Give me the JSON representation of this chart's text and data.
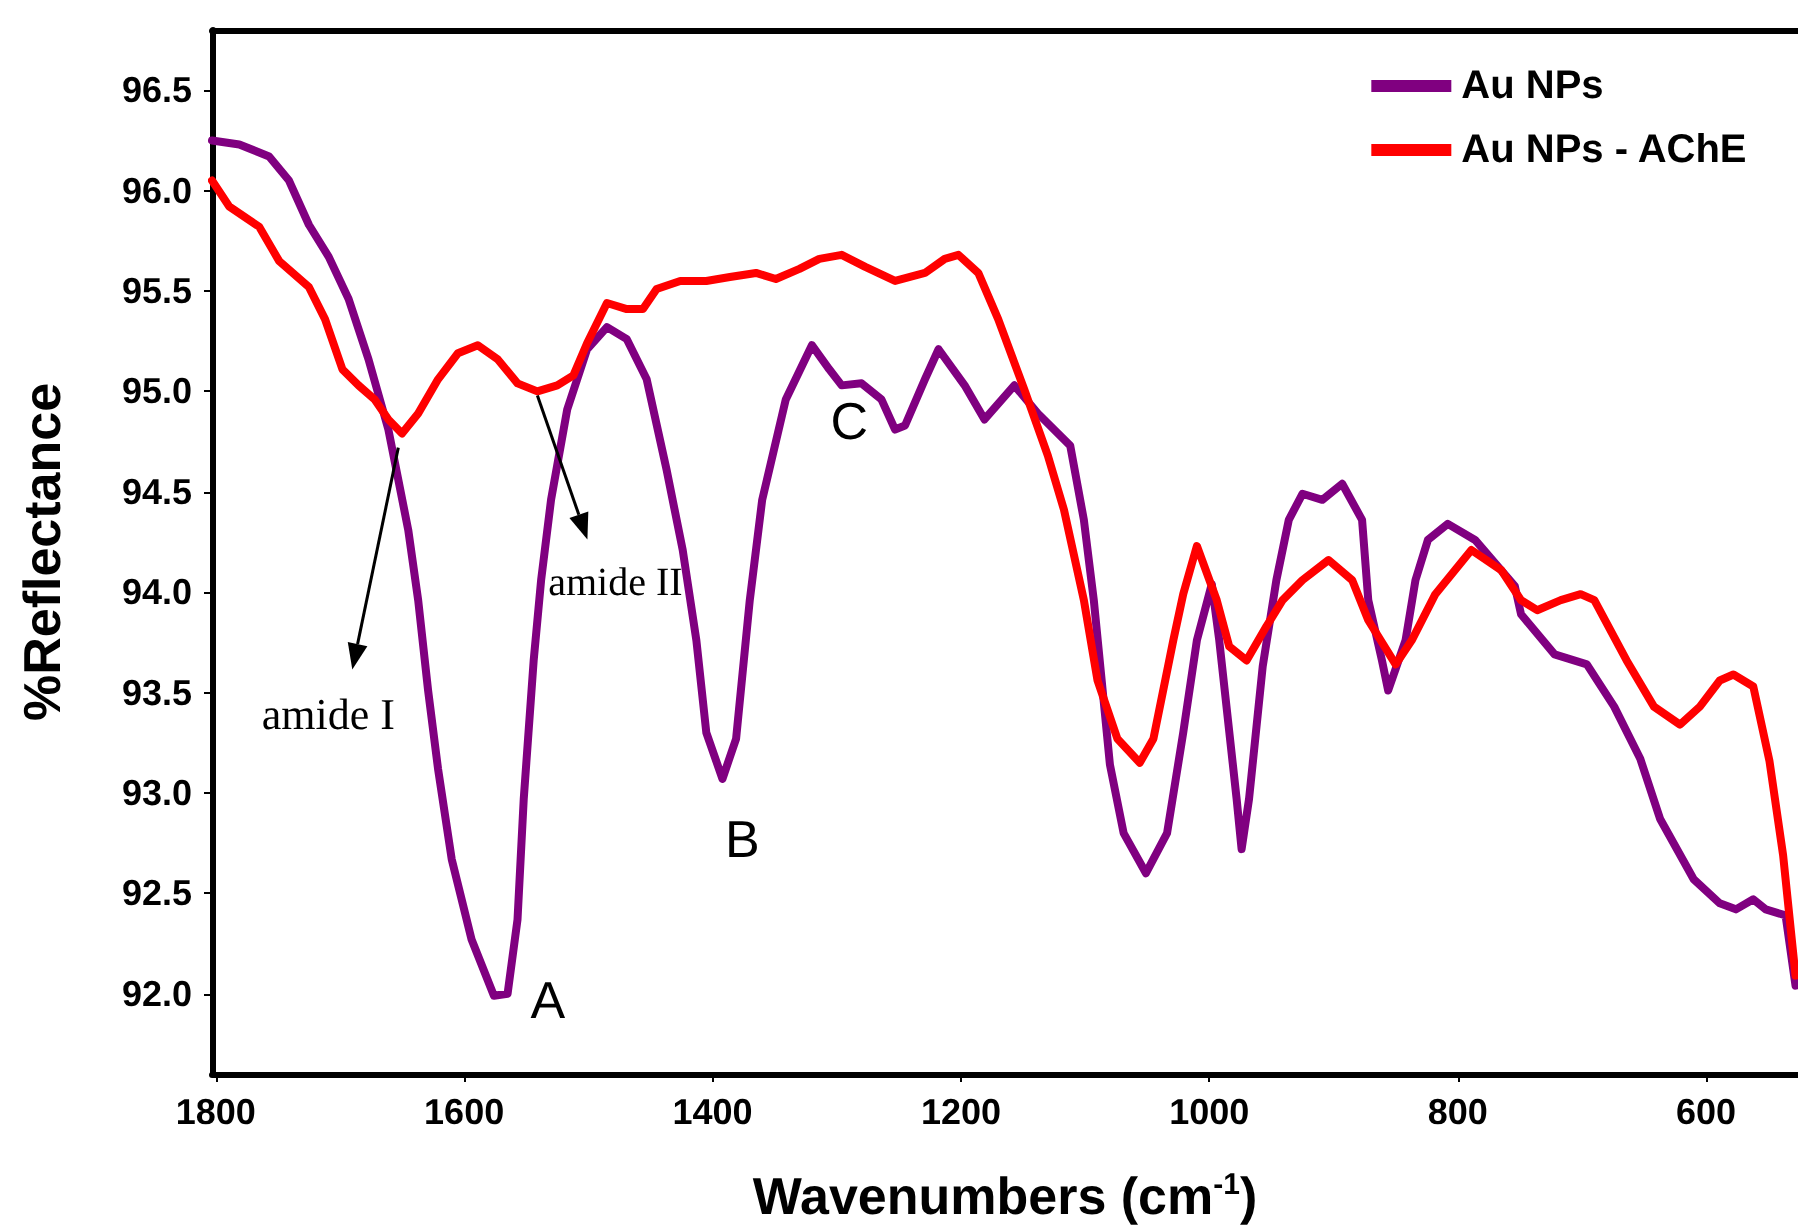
{
  "chart_data": {
    "type": "line",
    "xlabel": "Wavenumbers (cm$^{-1}$)",
    "ylabel": "%Reflectance",
    "xlim": [
      1803,
      526
    ],
    "ylim": [
      91.6,
      96.8
    ],
    "xticks": [
      1800,
      1600,
      1400,
      1200,
      1000,
      800,
      600
    ],
    "yticks": [
      {
        "value": 92,
        "label": "92.0"
      },
      {
        "value": 92.5,
        "label": "92.5"
      },
      {
        "value": 93,
        "label": "93.0"
      },
      {
        "value": 93.5,
        "label": "93.5"
      },
      {
        "value": 94,
        "label": "94.0"
      },
      {
        "value": 94.5,
        "label": "94.5"
      },
      {
        "value": 95,
        "label": "95.0"
      },
      {
        "value": 95.5,
        "label": "95.5"
      },
      {
        "value": 96,
        "label": "96.0"
      },
      {
        "value": 96.5,
        "label": "96.5"
      }
    ],
    "grid": false,
    "legend": "top right",
    "marker": "none",
    "line_style": "solid",
    "annotations": [
      {
        "text": "A",
        "x": 1576,
        "y": 91.99
      },
      {
        "text": "B",
        "x": 1392,
        "y": 93.07
      },
      {
        "text": "C",
        "x": 1306,
        "y": 95.11
      },
      {
        "text": "amide I",
        "x": 1653,
        "y": 94.72
      },
      {
        "text": "amide II",
        "x": 1541,
        "y": 95.0
      }
    ],
    "series": [
      {
        "name": "Au NPs",
        "color": "#800080",
        "x": [
          1803,
          1781,
          1757,
          1741,
          1725,
          1709,
          1693,
          1677,
          1661,
          1645,
          1637,
          1629,
          1621,
          1610,
          1594,
          1576,
          1565,
          1557,
          1552,
          1544,
          1538,
          1530,
          1517,
          1501,
          1485,
          1469,
          1453,
          1437,
          1424,
          1413,
          1405,
          1392,
          1381,
          1370,
          1360,
          1341,
          1320,
          1306,
          1296,
          1280,
          1264,
          1253,
          1245,
          1229,
          1218,
          1197,
          1181,
          1157,
          1138,
          1112,
          1101,
          1093,
          1080,
          1069,
          1051,
          1034,
          1021,
          1010,
          998,
          992,
          978,
          974,
          968,
          957,
          946,
          936,
          925,
          909,
          893,
          877,
          872,
          861,
          856,
          842,
          834,
          824,
          808,
          786,
          754,
          749,
          722,
          696,
          674,
          653,
          637,
          610,
          589,
          576,
          562,
          552,
          536,
          528
        ],
        "values": [
          96.25,
          96.23,
          96.17,
          96.05,
          95.83,
          95.67,
          95.46,
          95.16,
          94.81,
          94.31,
          93.96,
          93.51,
          93.12,
          92.67,
          92.27,
          91.99,
          92.0,
          92.37,
          92.97,
          93.66,
          94.06,
          94.46,
          94.91,
          95.21,
          95.32,
          95.26,
          95.06,
          94.61,
          94.21,
          93.76,
          93.3,
          93.07,
          93.27,
          93.96,
          94.46,
          94.96,
          95.23,
          95.11,
          95.03,
          95.04,
          94.96,
          94.81,
          94.83,
          95.06,
          95.21,
          95.03,
          94.86,
          95.03,
          94.89,
          94.73,
          94.36,
          93.96,
          93.14,
          92.8,
          92.6,
          92.8,
          93.3,
          93.76,
          94.04,
          93.76,
          92.97,
          92.72,
          92.97,
          93.63,
          94.06,
          94.36,
          94.49,
          94.46,
          94.54,
          94.36,
          93.96,
          93.66,
          93.51,
          93.76,
          94.06,
          94.26,
          94.34,
          94.26,
          94.03,
          93.89,
          93.69,
          93.64,
          93.43,
          93.17,
          92.87,
          92.57,
          92.45,
          92.42,
          92.47,
          92.42,
          92.39,
          92.04
        ]
      },
      {
        "name": "Au NPs - AChE",
        "color": "#ff0000",
        "x": [
          1803,
          1789,
          1765,
          1749,
          1725,
          1712,
          1698,
          1685,
          1672,
          1661,
          1650,
          1637,
          1621,
          1605,
          1589,
          1573,
          1557,
          1541,
          1525,
          1512,
          1501,
          1485,
          1469,
          1456,
          1445,
          1426,
          1405,
          1386,
          1365,
          1349,
          1330,
          1314,
          1296,
          1277,
          1253,
          1229,
          1213,
          1202,
          1186,
          1170,
          1149,
          1130,
          1117,
          1101,
          1090,
          1074,
          1056,
          1045,
          1029,
          1021,
          1010,
          994,
          984,
          970,
          954,
          941,
          925,
          904,
          885,
          872,
          850,
          837,
          818,
          789,
          765,
          749,
          736,
          717,
          701,
          690,
          664,
          642,
          621,
          605,
          589,
          578,
          562,
          549,
          538,
          528
        ],
        "values": [
          96.05,
          95.92,
          95.82,
          95.65,
          95.52,
          95.36,
          95.11,
          95.03,
          94.96,
          94.86,
          94.79,
          94.89,
          95.06,
          95.19,
          95.23,
          95.16,
          95.04,
          95.0,
          95.03,
          95.08,
          95.24,
          95.44,
          95.41,
          95.41,
          95.51,
          95.55,
          95.55,
          95.57,
          95.59,
          95.56,
          95.61,
          95.66,
          95.68,
          95.62,
          95.55,
          95.59,
          95.66,
          95.68,
          95.59,
          95.36,
          95.01,
          94.68,
          94.41,
          93.96,
          93.56,
          93.27,
          93.15,
          93.27,
          93.76,
          93.99,
          94.23,
          93.96,
          93.73,
          93.66,
          93.83,
          93.96,
          94.06,
          94.16,
          94.06,
          93.86,
          93.64,
          93.76,
          93.99,
          94.21,
          94.11,
          93.96,
          93.91,
          93.96,
          93.99,
          93.96,
          93.66,
          93.43,
          93.34,
          93.43,
          93.56,
          93.59,
          93.53,
          93.16,
          92.69,
          92.09
        ]
      }
    ]
  }
}
